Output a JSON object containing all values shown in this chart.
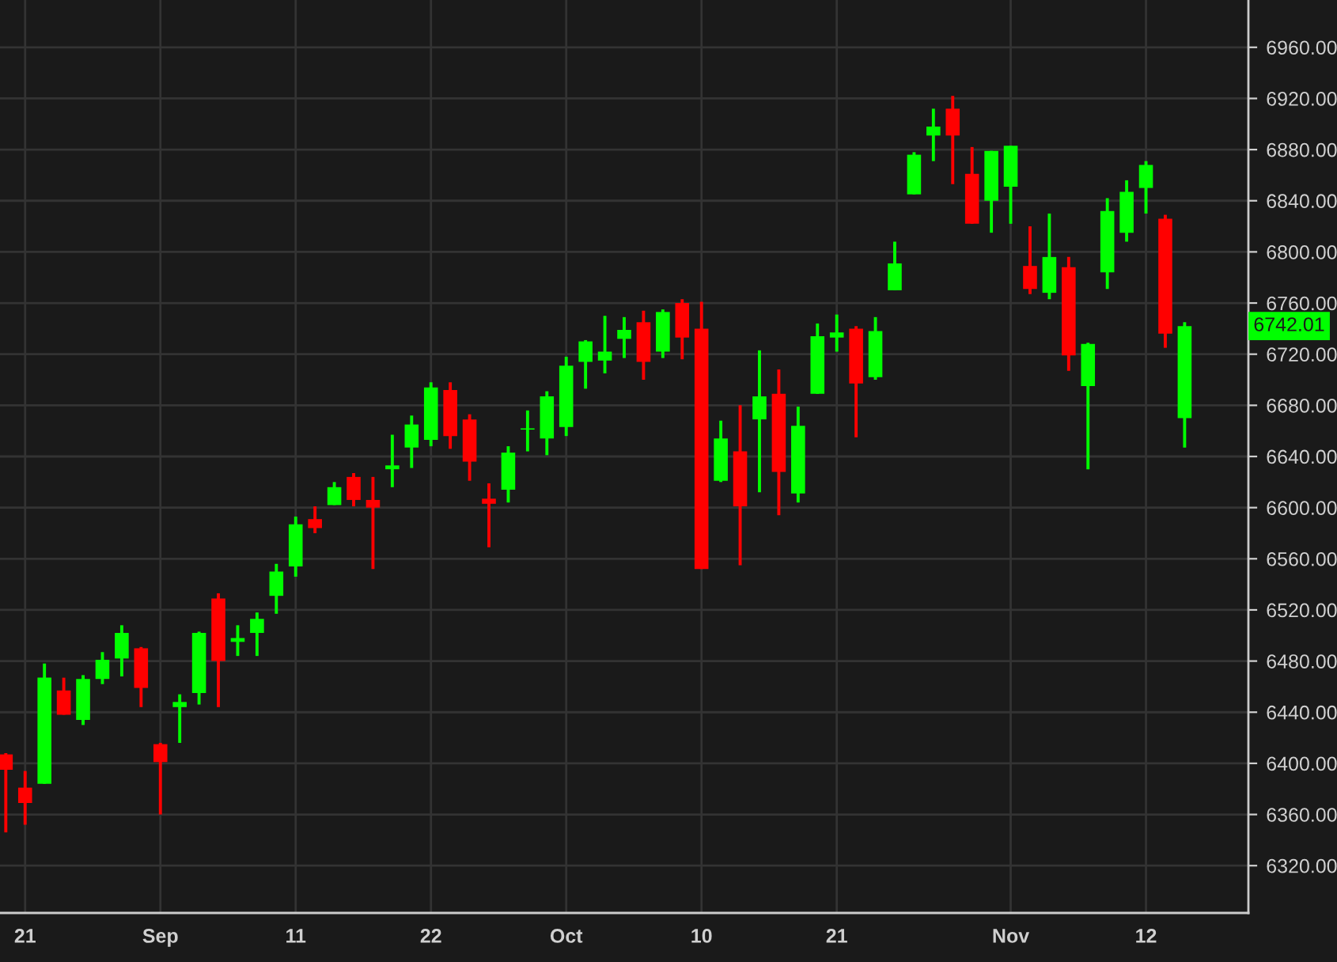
{
  "chart_data": {
    "type": "candlestick",
    "categories": [
      null,
      "21",
      null,
      null,
      null,
      null,
      null,
      null,
      "Sep",
      null,
      null,
      null,
      null,
      null,
      null,
      "11",
      null,
      null,
      null,
      null,
      null,
      null,
      "22",
      null,
      null,
      null,
      null,
      null,
      null,
      "Oct",
      null,
      null,
      null,
      null,
      null,
      null,
      "10",
      null,
      null,
      null,
      null,
      null,
      null,
      "21",
      null,
      null,
      null,
      null,
      null,
      null,
      null,
      null,
      "Nov",
      null,
      null,
      null,
      null,
      null,
      null,
      "12",
      null,
      null
    ],
    "ohlc": [
      [
        6407,
        6408,
        6346,
        6395
      ],
      [
        6381,
        6394,
        6352,
        6369
      ],
      [
        6384,
        6478,
        6384,
        6467
      ],
      [
        6457,
        6467,
        6438,
        6438
      ],
      [
        6434,
        6469,
        6430,
        6466
      ],
      [
        6466,
        6487,
        6462,
        6481
      ],
      [
        6482,
        6508,
        6468,
        6502
      ],
      [
        6490,
        6491,
        6444,
        6459
      ],
      [
        6415,
        6416,
        6360,
        6401
      ],
      [
        6444,
        6454,
        6416,
        6448
      ],
      [
        6455,
        6503,
        6446,
        6502
      ],
      [
        6529,
        6533,
        6444,
        6480
      ],
      [
        6495,
        6508,
        6484,
        6498
      ],
      [
        6502,
        6518,
        6484,
        6513
      ],
      [
        6531,
        6556,
        6517,
        6550
      ],
      [
        6554,
        6593,
        6546,
        6587
      ],
      [
        6591,
        6601,
        6580,
        6584
      ],
      [
        6602,
        6620,
        6602,
        6616
      ],
      [
        6624,
        6627,
        6601,
        6606
      ],
      [
        6606,
        6624,
        6552,
        6600
      ],
      [
        6630,
        6657,
        6616,
        6633
      ],
      [
        6647,
        6672,
        6631,
        6665
      ],
      [
        6653,
        6698,
        6648,
        6694
      ],
      [
        6692,
        6698,
        6646,
        6656
      ],
      [
        6669,
        6673,
        6621,
        6636
      ],
      [
        6607,
        6619,
        6569,
        6603
      ],
      [
        6614,
        6648,
        6604,
        6643
      ],
      [
        6661,
        6676,
        6644,
        6662
      ],
      [
        6654,
        6691,
        6641,
        6687
      ],
      [
        6663,
        6718,
        6656,
        6711
      ],
      [
        6714,
        6731,
        6693,
        6730
      ],
      [
        6715,
        6750,
        6705,
        6722
      ],
      [
        6732,
        6749,
        6717,
        6739
      ],
      [
        6745,
        6754,
        6700,
        6714
      ],
      [
        6722,
        6755,
        6717,
        6753
      ],
      [
        6760,
        6763,
        6716,
        6733
      ],
      [
        6740,
        6761,
        6552,
        6552
      ],
      [
        6621,
        6668,
        6620,
        6654
      ],
      [
        6644,
        6680,
        6555,
        6601
      ],
      [
        6669,
        6723,
        6612,
        6687
      ],
      [
        6689,
        6708,
        6594,
        6628
      ],
      [
        6611,
        6679,
        6604,
        6664
      ],
      [
        6689,
        6744,
        6689,
        6734
      ],
      [
        6733,
        6751,
        6722,
        6737
      ],
      [
        6740,
        6742,
        6655,
        6697
      ],
      [
        6702,
        6749,
        6700,
        6738
      ],
      [
        6770,
        6808,
        6770,
        6791
      ],
      [
        6845,
        6878,
        6845,
        6876
      ],
      [
        6891,
        6912,
        6871,
        6898
      ],
      [
        6912,
        6922,
        6853,
        6891
      ],
      [
        6861,
        6882,
        6822,
        6822
      ],
      [
        6840,
        6879,
        6815,
        6879
      ],
      [
        6851,
        6883,
        6822,
        6883
      ],
      [
        6789,
        6820,
        6767,
        6771
      ],
      [
        6768,
        6830,
        6763,
        6796
      ],
      [
        6788,
        6796,
        6707,
        6719
      ],
      [
        6695,
        6729,
        6630,
        6728
      ],
      [
        6784,
        6842,
        6771,
        6832
      ],
      [
        6815,
        6856,
        6808,
        6847
      ],
      [
        6850,
        6871,
        6830,
        6868
      ],
      [
        6826,
        6829,
        6725,
        6736
      ],
      [
        6670,
        6745,
        6647,
        6742
      ]
    ],
    "colors": [
      "#ff0000",
      "#ff0000",
      "#00ff00",
      "#ff0000",
      "#00ff00",
      "#00ff00",
      "#00ff00",
      "#ff0000",
      "#ff0000",
      "#00ff00",
      "#00ff00",
      "#ff0000",
      "#00ff00",
      "#00ff00",
      "#00ff00",
      "#00ff00",
      "#ff0000",
      "#00ff00",
      "#ff0000",
      "#ff0000",
      "#00ff00",
      "#00ff00",
      "#00ff00",
      "#ff0000",
      "#ff0000",
      "#ff0000",
      "#00ff00",
      "#00ff00",
      "#00ff00",
      "#00ff00",
      "#00ff00",
      "#00ff00",
      "#00ff00",
      "#ff0000",
      "#00ff00",
      "#ff0000",
      "#ff0000",
      "#00ff00",
      "#ff0000",
      "#00ff00",
      "#ff0000",
      "#00ff00",
      "#00ff00",
      "#00ff00",
      "#ff0000",
      "#00ff00",
      "#00ff00",
      "#00ff00",
      "#00ff00",
      "#ff0000",
      "#ff0000",
      "#00ff00",
      "#00ff00",
      "#ff0000",
      "#00ff00",
      "#ff0000",
      "#00ff00",
      "#00ff00",
      "#00ff00",
      "#00ff00",
      "#ff0000",
      "#00ff00"
    ],
    "ylim": [
      6283,
      6997
    ],
    "yticks": [
      {
        "value": 6320,
        "label": "6320.00"
      },
      {
        "value": 6360,
        "label": "6360.00"
      },
      {
        "value": 6400,
        "label": "6400.00"
      },
      {
        "value": 6440,
        "label": "6440.00"
      },
      {
        "value": 6480,
        "label": "6480.00"
      },
      {
        "value": 6520,
        "label": "6520.00"
      },
      {
        "value": 6560,
        "label": "6560.00"
      },
      {
        "value": 6600,
        "label": "6600.00"
      },
      {
        "value": 6640,
        "label": "6640.00"
      },
      {
        "value": 6680,
        "label": "6680.00"
      },
      {
        "value": 6720,
        "label": "6720.00"
      },
      {
        "value": 6760,
        "label": "6760.00"
      },
      {
        "value": 6800,
        "label": "6800.00"
      },
      {
        "value": 6840,
        "label": "6840.00"
      },
      {
        "value": 6880,
        "label": "6880.00"
      },
      {
        "value": 6920,
        "label": "6920.00"
      },
      {
        "value": 6960,
        "label": "6960.00"
      }
    ],
    "grid": true,
    "annotations": [
      "6742.01"
    ]
  }
}
